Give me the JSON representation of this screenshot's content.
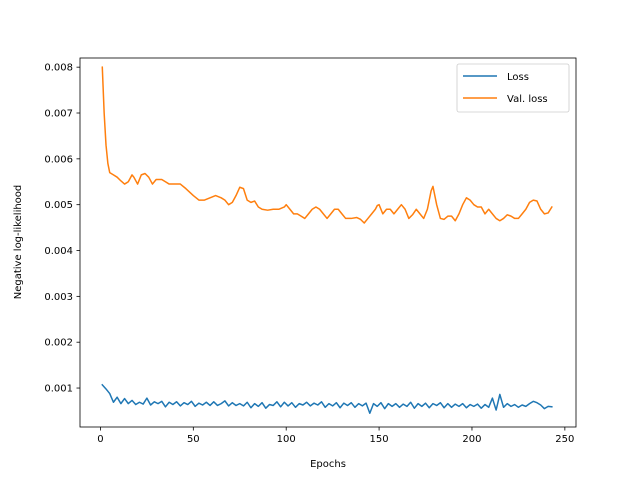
{
  "chart_data": {
    "type": "line",
    "xlabel": "Epochs",
    "ylabel": "Negative log-likelihood",
    "xlim": [
      -11,
      256
    ],
    "ylim": [
      0.00015,
      0.0082
    ],
    "xticks": [
      0,
      50,
      100,
      150,
      200,
      250
    ],
    "yticks": [
      0.001,
      0.002,
      0.003,
      0.004,
      0.005,
      0.006,
      0.007,
      0.008
    ],
    "xtick_labels": [
      "0",
      "50",
      "100",
      "150",
      "200",
      "250"
    ],
    "ytick_labels": [
      "0.001",
      "0.002",
      "0.003",
      "0.004",
      "0.005",
      "0.006",
      "0.007",
      "0.008"
    ],
    "grid": false,
    "legend_position": "top-right",
    "series": [
      {
        "name": "Loss",
        "color": "#1f77b4",
        "points": [
          [
            1,
            0.00107
          ],
          [
            3,
            0.00098
          ],
          [
            5,
            0.00088
          ],
          [
            7,
            0.00069
          ],
          [
            9,
            0.0008
          ],
          [
            11,
            0.00066
          ],
          [
            13,
            0.00077
          ],
          [
            15,
            0.00066
          ],
          [
            17,
            0.00073
          ],
          [
            19,
            0.00064
          ],
          [
            21,
            0.00069
          ],
          [
            23,
            0.00065
          ],
          [
            25,
            0.00078
          ],
          [
            27,
            0.00063
          ],
          [
            29,
            0.0007
          ],
          [
            31,
            0.00066
          ],
          [
            33,
            0.00071
          ],
          [
            35,
            0.00059
          ],
          [
            37,
            0.00069
          ],
          [
            39,
            0.00064
          ],
          [
            41,
            0.0007
          ],
          [
            43,
            0.00061
          ],
          [
            45,
            0.00068
          ],
          [
            47,
            0.00064
          ],
          [
            49,
            0.00071
          ],
          [
            51,
            0.0006
          ],
          [
            53,
            0.00067
          ],
          [
            55,
            0.00063
          ],
          [
            57,
            0.00069
          ],
          [
            59,
            0.00062
          ],
          [
            61,
            0.0007
          ],
          [
            63,
            0.00062
          ],
          [
            65,
            0.00066
          ],
          [
            67,
            0.00072
          ],
          [
            69,
            0.00061
          ],
          [
            71,
            0.00068
          ],
          [
            73,
            0.00062
          ],
          [
            75,
            0.00066
          ],
          [
            77,
            0.00061
          ],
          [
            79,
            0.00069
          ],
          [
            81,
            0.00057
          ],
          [
            83,
            0.00066
          ],
          [
            85,
            0.0006
          ],
          [
            87,
            0.00068
          ],
          [
            89,
            0.00056
          ],
          [
            91,
            0.00064
          ],
          [
            93,
            0.00062
          ],
          [
            95,
            0.0007
          ],
          [
            97,
            0.00059
          ],
          [
            99,
            0.00069
          ],
          [
            101,
            0.00061
          ],
          [
            103,
            0.00068
          ],
          [
            105,
            0.00058
          ],
          [
            107,
            0.00066
          ],
          [
            109,
            0.00063
          ],
          [
            111,
            0.00069
          ],
          [
            113,
            0.00061
          ],
          [
            115,
            0.00067
          ],
          [
            117,
            0.00063
          ],
          [
            119,
            0.0007
          ],
          [
            121,
            0.00058
          ],
          [
            123,
            0.00066
          ],
          [
            125,
            0.00061
          ],
          [
            127,
            0.00068
          ],
          [
            129,
            0.00057
          ],
          [
            131,
            0.00067
          ],
          [
            133,
            0.00062
          ],
          [
            135,
            0.00068
          ],
          [
            137,
            0.00058
          ],
          [
            139,
            0.00066
          ],
          [
            141,
            0.00061
          ],
          [
            143,
            0.00067
          ],
          [
            145,
            0.00045
          ],
          [
            147,
            0.00066
          ],
          [
            149,
            0.0006
          ],
          [
            151,
            0.00068
          ],
          [
            153,
            0.00055
          ],
          [
            155,
            0.00066
          ],
          [
            157,
            0.0006
          ],
          [
            159,
            0.00066
          ],
          [
            161,
            0.00058
          ],
          [
            163,
            0.00065
          ],
          [
            165,
            0.0006
          ],
          [
            167,
            0.00069
          ],
          [
            169,
            0.00056
          ],
          [
            171,
            0.00066
          ],
          [
            173,
            0.0006
          ],
          [
            175,
            0.00067
          ],
          [
            177,
            0.00057
          ],
          [
            179,
            0.00066
          ],
          [
            181,
            0.00062
          ],
          [
            183,
            0.00068
          ],
          [
            185,
            0.00057
          ],
          [
            187,
            0.00066
          ],
          [
            189,
            0.00058
          ],
          [
            191,
            0.00065
          ],
          [
            193,
            0.0006
          ],
          [
            195,
            0.00066
          ],
          [
            197,
            0.00057
          ],
          [
            199,
            0.00064
          ],
          [
            201,
            0.0006
          ],
          [
            203,
            0.00065
          ],
          [
            205,
            0.00056
          ],
          [
            207,
            0.00064
          ],
          [
            209,
            0.00058
          ],
          [
            211,
            0.00078
          ],
          [
            213,
            0.00052
          ],
          [
            215,
            0.00086
          ],
          [
            217,
            0.00058
          ],
          [
            219,
            0.00066
          ],
          [
            221,
            0.0006
          ],
          [
            223,
            0.00064
          ],
          [
            225,
            0.00058
          ],
          [
            227,
            0.00063
          ],
          [
            229,
            0.0006
          ],
          [
            231,
            0.00066
          ],
          [
            233,
            0.00071
          ],
          [
            235,
            0.00068
          ],
          [
            237,
            0.00063
          ],
          [
            239,
            0.00055
          ],
          [
            241,
            0.0006
          ],
          [
            243,
            0.00059
          ]
        ]
      },
      {
        "name": "Val. loss",
        "color": "#ff7f0e",
        "points": [
          [
            1,
            0.008
          ],
          [
            2,
            0.007
          ],
          [
            3,
            0.0063
          ],
          [
            4,
            0.0059
          ],
          [
            5,
            0.0057
          ],
          [
            7,
            0.00565
          ],
          [
            9,
            0.0056
          ],
          [
            11,
            0.00552
          ],
          [
            13,
            0.00545
          ],
          [
            15,
            0.0055
          ],
          [
            17,
            0.00565
          ],
          [
            18,
            0.0056
          ],
          [
            20,
            0.00545
          ],
          [
            22,
            0.00565
          ],
          [
            24,
            0.00568
          ],
          [
            26,
            0.0056
          ],
          [
            28,
            0.00545
          ],
          [
            30,
            0.00555
          ],
          [
            33,
            0.00555
          ],
          [
            35,
            0.0055
          ],
          [
            37,
            0.00545
          ],
          [
            40,
            0.00545
          ],
          [
            43,
            0.00545
          ],
          [
            46,
            0.00535
          ],
          [
            50,
            0.0052
          ],
          [
            53,
            0.0051
          ],
          [
            56,
            0.0051
          ],
          [
            59,
            0.00515
          ],
          [
            62,
            0.0052
          ],
          [
            65,
            0.00515
          ],
          [
            67,
            0.0051
          ],
          [
            69,
            0.005
          ],
          [
            71,
            0.00505
          ],
          [
            73,
            0.0052
          ],
          [
            75,
            0.00538
          ],
          [
            77,
            0.00535
          ],
          [
            79,
            0.0051
          ],
          [
            81,
            0.00505
          ],
          [
            83,
            0.00508
          ],
          [
            85,
            0.00495
          ],
          [
            87,
            0.0049
          ],
          [
            90,
            0.00488
          ],
          [
            93,
            0.0049
          ],
          [
            96,
            0.0049
          ],
          [
            99,
            0.00495
          ],
          [
            100,
            0.005
          ],
          [
            102,
            0.0049
          ],
          [
            104,
            0.0048
          ],
          [
            106,
            0.0048
          ],
          [
            108,
            0.00475
          ],
          [
            110,
            0.0047
          ],
          [
            112,
            0.0048
          ],
          [
            114,
            0.0049
          ],
          [
            116,
            0.00495
          ],
          [
            118,
            0.0049
          ],
          [
            120,
            0.0048
          ],
          [
            122,
            0.0047
          ],
          [
            124,
            0.0048
          ],
          [
            126,
            0.0049
          ],
          [
            128,
            0.0049
          ],
          [
            130,
            0.0048
          ],
          [
            132,
            0.0047
          ],
          [
            135,
            0.0047
          ],
          [
            138,
            0.00472
          ],
          [
            140,
            0.00468
          ],
          [
            142,
            0.0046
          ],
          [
            144,
            0.0047
          ],
          [
            146,
            0.0048
          ],
          [
            148,
            0.0049
          ],
          [
            149,
            0.00498
          ],
          [
            150,
            0.005
          ],
          [
            152,
            0.0048
          ],
          [
            154,
            0.0049
          ],
          [
            156,
            0.0049
          ],
          [
            158,
            0.0048
          ],
          [
            160,
            0.0049
          ],
          [
            162,
            0.005
          ],
          [
            164,
            0.0049
          ],
          [
            166,
            0.0047
          ],
          [
            168,
            0.00478
          ],
          [
            170,
            0.0049
          ],
          [
            172,
            0.0048
          ],
          [
            174,
            0.0047
          ],
          [
            176,
            0.0049
          ],
          [
            178,
            0.0053
          ],
          [
            179,
            0.0054
          ],
          [
            181,
            0.005
          ],
          [
            183,
            0.0047
          ],
          [
            185,
            0.00468
          ],
          [
            187,
            0.00475
          ],
          [
            189,
            0.00475
          ],
          [
            191,
            0.00465
          ],
          [
            193,
            0.0048
          ],
          [
            195,
            0.005
          ],
          [
            197,
            0.00515
          ],
          [
            199,
            0.0051
          ],
          [
            201,
            0.005
          ],
          [
            203,
            0.00495
          ],
          [
            205,
            0.00495
          ],
          [
            207,
            0.0048
          ],
          [
            209,
            0.0049
          ],
          [
            211,
            0.0048
          ],
          [
            213,
            0.0047
          ],
          [
            215,
            0.00465
          ],
          [
            217,
            0.0047
          ],
          [
            219,
            0.00478
          ],
          [
            221,
            0.00475
          ],
          [
            223,
            0.0047
          ],
          [
            225,
            0.0047
          ],
          [
            227,
            0.0048
          ],
          [
            229,
            0.0049
          ],
          [
            231,
            0.00505
          ],
          [
            233,
            0.0051
          ],
          [
            235,
            0.00508
          ],
          [
            237,
            0.0049
          ],
          [
            239,
            0.0048
          ],
          [
            241,
            0.00482
          ],
          [
            243,
            0.00495
          ]
        ]
      }
    ]
  }
}
